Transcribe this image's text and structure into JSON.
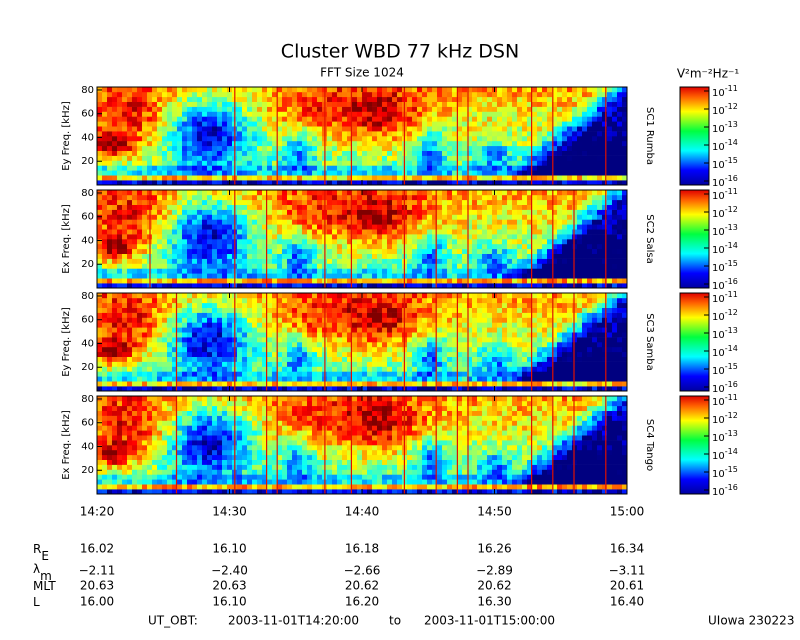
{
  "title": "Cluster WBD 77 kHz DSN",
  "subtitle": "FFT Size 1024",
  "units": "V²m⁻²Hz⁻¹",
  "panels": [
    {
      "ylabel": "Ey Freq. [kHz]",
      "label": "SC1 Rumba"
    },
    {
      "ylabel": "Ex Freq. [kHz]",
      "label": "SC2 Salsa"
    },
    {
      "ylabel": "Ey Freq. [kHz]",
      "label": "SC3 Samba"
    },
    {
      "ylabel": "Ex Freq. [kHz]",
      "label": "SC4 Tango"
    }
  ],
  "ylim": [
    0,
    82.5
  ],
  "yticks": [
    20,
    40,
    60,
    80
  ],
  "xticks": [
    "14:20",
    "14:30",
    "14:40",
    "14:50",
    "15:00"
  ],
  "colorbar_ticks": [
    {
      "base": "10",
      "exp": "-11"
    },
    {
      "base": "10",
      "exp": "-12"
    },
    {
      "base": "10",
      "exp": "-13"
    },
    {
      "base": "10",
      "exp": "-14"
    },
    {
      "base": "10",
      "exp": "-15"
    },
    {
      "base": "10",
      "exp": "-16"
    }
  ],
  "ephemeris": [
    {
      "label": {
        "main": "R",
        "sub": "E"
      },
      "values": [
        "16.02",
        "16.10",
        "16.18",
        "16.26",
        "16.34"
      ]
    },
    {
      "label": {
        "main": "λ",
        "sub": "m"
      },
      "values": [
        "−2.11",
        "−2.40",
        "−2.66",
        "−2.89",
        "−3.11"
      ]
    },
    {
      "label": {
        "main": "MLT",
        "sub": ""
      },
      "values": [
        "20.63",
        "20.63",
        "20.62",
        "20.62",
        "20.61"
      ]
    },
    {
      "label": {
        "main": "L",
        "sub": ""
      },
      "values": [
        "16.00",
        "16.10",
        "16.20",
        "16.30",
        "16.40"
      ]
    }
  ],
  "footer": {
    "label": "UT_OBT:",
    "start": "2003-11-01T14:20:00",
    "to": "to",
    "end": "2003-11-01T15:00:00",
    "credit": "UIowa 230223"
  }
}
